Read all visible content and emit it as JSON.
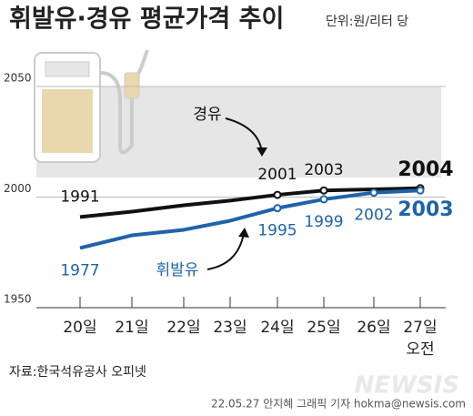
{
  "chart_data": {
    "type": "line",
    "title": "휘발유·경유 평균가격 추이",
    "subtitle": "단위:원/리터 당",
    "categories": [
      "20일",
      "21일",
      "22일",
      "23일",
      "24일",
      "25일",
      "26일",
      "27일"
    ],
    "x_note": "오전",
    "ylim": [
      1950,
      2060
    ],
    "yticks": [
      1950,
      2000,
      2050
    ],
    "grid": true,
    "series": [
      {
        "name": "경유",
        "color": "#111111",
        "values": [
          1991,
          1993.4,
          1996.3,
          1998.4,
          2001,
          2003,
          2003.5,
          2004
        ],
        "value_labels": [
          "1991",
          null,
          null,
          null,
          "2001",
          "2003",
          null,
          "2004"
        ]
      },
      {
        "name": "휘발유",
        "color": "#1f63a8",
        "values": [
          1977,
          1982.7,
          1985.2,
          1989.3,
          1995,
          1999,
          2002,
          2003
        ],
        "value_labels": [
          "1977",
          null,
          null,
          null,
          "1995",
          "1999",
          "2002",
          "2003"
        ]
      }
    ],
    "source": "자료:한국석유공사 오피넷",
    "credit": "22.05.27 안지혜 그래픽 기자 hokma@newsis.com",
    "watermark": "NEWSIS"
  }
}
